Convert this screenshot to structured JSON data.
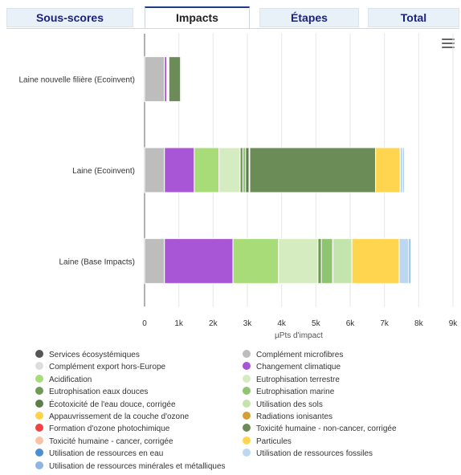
{
  "tabs": [
    {
      "label": "Sous-scores",
      "active": false
    },
    {
      "label": "Impacts",
      "active": true
    },
    {
      "label": "Étapes",
      "active": false
    },
    {
      "label": "Total",
      "active": false
    }
  ],
  "menu_icon": "hamburger-menu-icon",
  "chart_data": {
    "type": "bar",
    "orientation": "horizontal",
    "stacked": true,
    "categories": [
      "Laine nouvelle filière (Ecoinvent)",
      "Laine (Ecoinvent)",
      "Laine (Base Impacts)"
    ],
    "xlabel": "µPts d'impact",
    "xlim": [
      0,
      9000
    ],
    "xticks": [
      "0",
      "1k",
      "2k",
      "3k",
      "4k",
      "5k",
      "6k",
      "7k",
      "8k",
      "9k"
    ],
    "grid": true,
    "legend_position": "bottom",
    "series": [
      {
        "name": "Services écosystémiques",
        "color": "#555555",
        "values": [
          0,
          0,
          0
        ]
      },
      {
        "name": "Complément microfibres",
        "color": "#bdbdbd",
        "values": [
          580,
          580,
          580
        ]
      },
      {
        "name": "Complément export hors-Europe",
        "color": "#dddddd",
        "values": [
          0,
          0,
          0
        ]
      },
      {
        "name": "Changement climatique",
        "color": "#a855d6",
        "values": [
          70,
          870,
          2000
        ]
      },
      {
        "name": "Acidification",
        "color": "#a8dc78",
        "values": [
          10,
          720,
          1330
        ]
      },
      {
        "name": "Eutrophisation terrestre",
        "color": "#d4ecc0",
        "values": [
          10,
          620,
          1150
        ]
      },
      {
        "name": "Eutrophisation eaux douces",
        "color": "#6f9a55",
        "values": [
          5,
          80,
          100
        ]
      },
      {
        "name": "Eutrophisation marine",
        "color": "#8fc470",
        "values": [
          5,
          80,
          330
        ]
      },
      {
        "name": "Écotoxicité de l'eau douce, corrigée",
        "color": "#5c7d49",
        "values": [
          10,
          100,
          10
        ]
      },
      {
        "name": "Utilisation des sols",
        "color": "#c4e4ae",
        "values": [
          20,
          20,
          550
        ]
      },
      {
        "name": "Appauvrissement de la couche d'ozone",
        "color": "#ffd24a",
        "values": [
          0,
          0,
          0
        ]
      },
      {
        "name": "Radiations ionisantes",
        "color": "#d4a035",
        "values": [
          0,
          0,
          0
        ]
      },
      {
        "name": "Formation d'ozone photochimique",
        "color": "#ef4444",
        "values": [
          0,
          0,
          0
        ]
      },
      {
        "name": "Toxicité humaine - non-cancer, corrigée",
        "color": "#6b8c56",
        "values": [
          340,
          3670,
          0
        ]
      },
      {
        "name": "Toxicité humaine - cancer, corrigée",
        "color": "#f8c4a8",
        "values": [
          0,
          0,
          0
        ]
      },
      {
        "name": "Particules",
        "color": "#ffd54f",
        "values": [
          30,
          720,
          1380
        ]
      },
      {
        "name": "Utilisation de ressources en eau",
        "color": "#4a8fd0",
        "values": [
          0,
          0,
          0
        ]
      },
      {
        "name": "Utilisation de ressources fossiles",
        "color": "#bcd8f0",
        "values": [
          10,
          80,
          280
        ]
      },
      {
        "name": "Utilisation de ressources minérales et métalliques",
        "color": "#90b4e0",
        "values": [
          5,
          40,
          60
        ]
      }
    ]
  }
}
